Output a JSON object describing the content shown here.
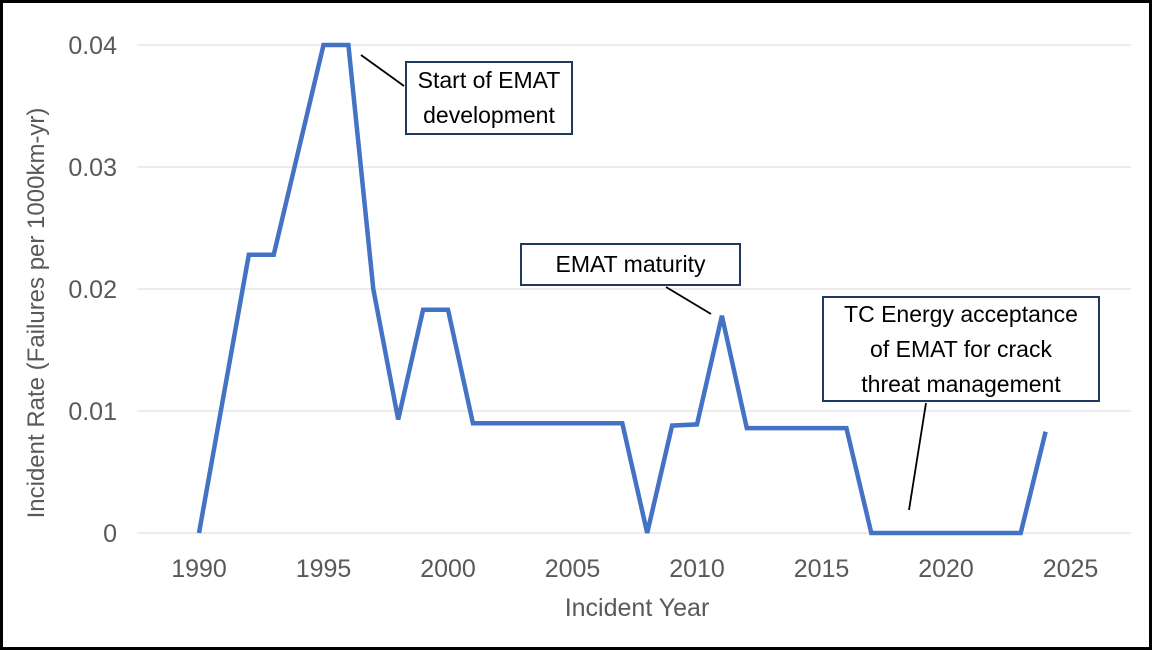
{
  "chart_data": {
    "type": "line",
    "title": "",
    "xlabel": "Incident Year",
    "ylabel": "Incident Rate (Failures per 1000km-yr)",
    "x": [
      1990,
      1991,
      1992,
      1993,
      1994,
      1995,
      1996,
      1997,
      1998,
      1999,
      2000,
      2001,
      2002,
      2003,
      2004,
      2005,
      2006,
      2007,
      2008,
      2009,
      2010,
      2011,
      2012,
      2013,
      2014,
      2015,
      2016,
      2017,
      2018,
      2019,
      2020,
      2021,
      2022,
      2023,
      2024
    ],
    "values": [
      0,
      0.0114,
      0.0228,
      0.0228,
      0.0314,
      0.04,
      0.04,
      0.02,
      0.0093,
      0.0183,
      0.0183,
      0.009,
      0.009,
      0.009,
      0.009,
      0.009,
      0.009,
      0.009,
      0,
      0.0088,
      0.0089,
      0.0178,
      0.0086,
      0.0086,
      0.0086,
      0.0086,
      0.0086,
      0,
      0,
      0,
      0,
      0,
      0,
      0,
      0.0083
    ],
    "xticks": [
      1990,
      1995,
      2000,
      2005,
      2010,
      2015,
      2020,
      2025
    ],
    "yticks": [
      0,
      0.01,
      0.02,
      0.03,
      0.04
    ],
    "ytick_labels": [
      "0",
      "0.01",
      "0.02",
      "0.03",
      "0.04"
    ],
    "xlim": [
      1987.5,
      2027.5
    ],
    "ylim": [
      0,
      0.04
    ],
    "grid": "horizontal",
    "legend": "none",
    "line_color": "#4472C4",
    "grid_color": "#D9D9D9",
    "axis_text_color": "#595959",
    "annotation_border_color": "#1F3A5F",
    "annotations": [
      {
        "lines": [
          "Start of EMAT",
          "development"
        ],
        "points_to_year": 1996
      },
      {
        "lines": [
          "EMAT maturity"
        ],
        "points_to_year": 2011
      },
      {
        "lines": [
          "TC Energy acceptance",
          "of EMAT for crack",
          "threat management"
        ],
        "points_to_year": 2018
      }
    ]
  }
}
